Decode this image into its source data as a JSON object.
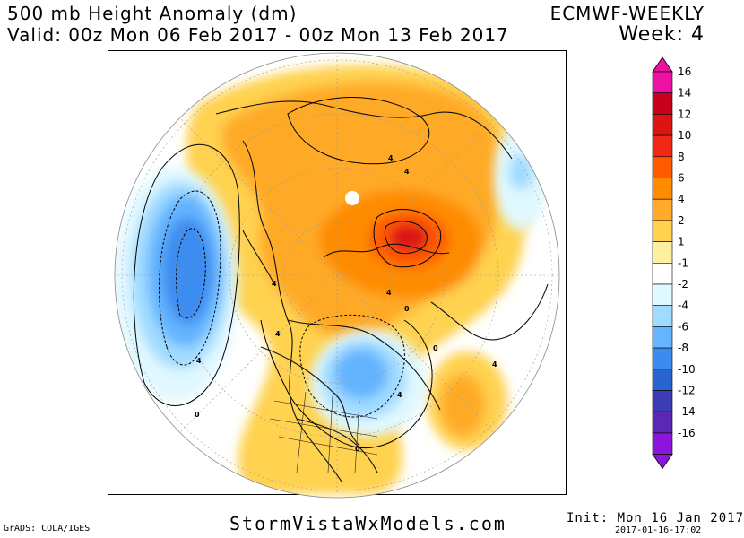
{
  "header": {
    "title": "500 mb Height Anomaly (dm)",
    "valid": "Valid: 00z Mon 06 Feb 2017 - 00z Mon 13 Feb 2017",
    "model": "ECMWF-WEEKLY",
    "week": "Week: 4"
  },
  "footer": {
    "grads": "GrADS: COLA/IGES",
    "site": "StormVistaWxModels.com",
    "init": "Init: Mon 16 Jan 2017",
    "stamp": "2017-01-16-17:02"
  },
  "map": {
    "projection": "north-polar-stereographic",
    "contour_labels": [
      "4",
      "4",
      "4",
      "4",
      "4",
      "4",
      "0",
      "0",
      "0",
      "0",
      "4",
      "4"
    ]
  },
  "legend": {
    "levels": [
      {
        "label": "16",
        "color": "#ee10a0"
      },
      {
        "label": "14",
        "color": "#c8001e"
      },
      {
        "label": "12",
        "color": "#dc1414"
      },
      {
        "label": "10",
        "color": "#f02814"
      },
      {
        "label": "8",
        "color": "#ff5a00"
      },
      {
        "label": "6",
        "color": "#ff8c00"
      },
      {
        "label": "4",
        "color": "#ffaa28"
      },
      {
        "label": "2",
        "color": "#ffd250"
      },
      {
        "label": "1",
        "color": "#fff0a0"
      },
      {
        "label": "-1",
        "color": "#ffffff"
      },
      {
        "label": "-2",
        "color": "#e0f8ff"
      },
      {
        "label": "-4",
        "color": "#a0dcff"
      },
      {
        "label": "-6",
        "color": "#64b4ff"
      },
      {
        "label": "-8",
        "color": "#3c8cf0"
      },
      {
        "label": "-10",
        "color": "#2864d2"
      },
      {
        "label": "-12",
        "color": "#3c3cb4"
      },
      {
        "label": "-14",
        "color": "#5a28b4"
      },
      {
        "label": "-16",
        "color": "#8c14dc"
      }
    ]
  }
}
